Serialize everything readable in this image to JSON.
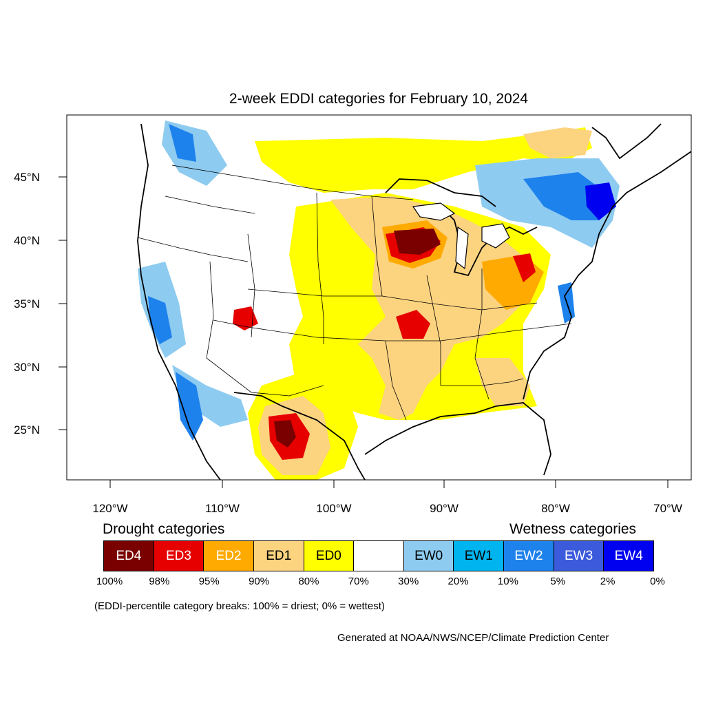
{
  "title": "2-week EDDI categories for February 10, 2024",
  "lat_labels": [
    "45°N",
    "40°N",
    "35°N",
    "30°N",
    "25°N"
  ],
  "lon_labels": [
    "120°W",
    "110°W",
    "100°W",
    "90°W",
    "80°W",
    "70°W"
  ],
  "legend": {
    "drought_heading": "Drought categories",
    "wetness_heading": "Wetness categories",
    "categories": [
      {
        "label": "ED4",
        "color": "#7a0000",
        "text_color": "#ffffff"
      },
      {
        "label": "ED3",
        "color": "#e60000",
        "text_color": "#ffffff"
      },
      {
        "label": "ED2",
        "color": "#ffaa00",
        "text_color": "#ffffff"
      },
      {
        "label": "ED1",
        "color": "#fcd37f",
        "text_color": "#000000"
      },
      {
        "label": "ED0",
        "color": "#ffff00",
        "text_color": "#000000"
      },
      {
        "label": "",
        "color": "#ffffff",
        "text_color": "#000000"
      },
      {
        "label": "EW0",
        "color": "#8ecbf0",
        "text_color": "#000000"
      },
      {
        "label": "EW1",
        "color": "#00b4f0",
        "text_color": "#000000"
      },
      {
        "label": "EW2",
        "color": "#1e82ec",
        "text_color": "#ffffff"
      },
      {
        "label": "EW3",
        "color": "#3c5adc",
        "text_color": "#ffffff"
      },
      {
        "label": "EW4",
        "color": "#0000f0",
        "text_color": "#ffffff"
      }
    ],
    "breaks": [
      "100%",
      "98%",
      "95%",
      "90%",
      "80%",
      "70%",
      "30%",
      "20%",
      "10%",
      "5%",
      "2%",
      "0%"
    ]
  },
  "note": "(EDDI-percentile category breaks: 100% = driest; 0% = wettest)",
  "credit": "Generated at NOAA/NWS/NCEP/Climate Prediction Center"
}
